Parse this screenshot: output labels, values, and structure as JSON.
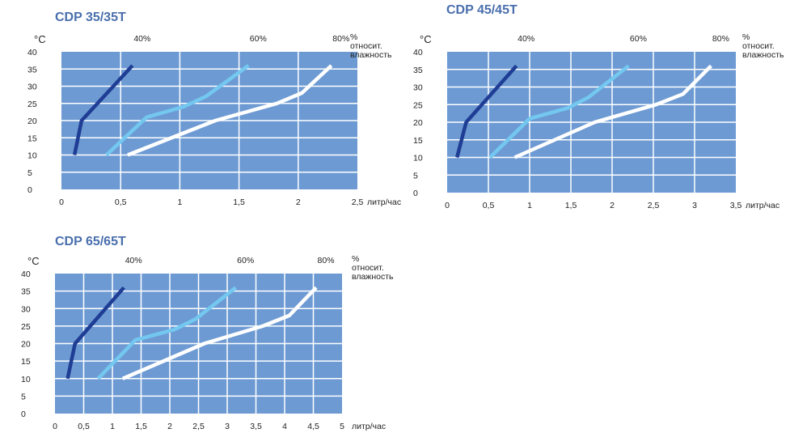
{
  "colors": {
    "plot_bg": "#6d9ad3",
    "grid": "#ffffff",
    "title": "#4a6fad",
    "series_40": "#1f3d94",
    "series_60": "#74c8f0",
    "series_80": "#ffffff"
  },
  "chart_data": [
    {
      "type": "line",
      "title": "CDP 35/35T",
      "ylabel": "°C",
      "xlabel": "литр/час",
      "legend_top_right": [
        "%",
        "относит.",
        "влажность"
      ],
      "xlim": [
        0,
        2.5
      ],
      "ylim": [
        0,
        40
      ],
      "x_ticks": [
        0,
        0.5,
        1,
        1.5,
        2,
        2.5
      ],
      "x_tick_labels": [
        "0",
        "0,5",
        "1",
        "1,5",
        "2",
        "2,5"
      ],
      "y_ticks": [
        0,
        5,
        10,
        15,
        20,
        25,
        30,
        35,
        40
      ],
      "y_tick_labels": [
        "0",
        "5",
        "10",
        "15",
        "20",
        "25",
        "30",
        "35",
        "40"
      ],
      "series": [
        {
          "name": "40%",
          "color_key": "series_40",
          "x": [
            0.11,
            0.17,
            0.6
          ],
          "y": [
            10,
            20,
            36
          ]
        },
        {
          "name": "60%",
          "color_key": "series_60",
          "x": [
            0.38,
            0.72,
            1.03,
            1.22,
            1.58
          ],
          "y": [
            10,
            21,
            24,
            27,
            36
          ]
        },
        {
          "name": "80%",
          "color_key": "series_80",
          "x": [
            0.56,
            1.3,
            1.82,
            2.03,
            2.28
          ],
          "y": [
            10,
            20,
            25,
            28,
            36
          ]
        }
      ]
    },
    {
      "type": "line",
      "title": "CDP 45/45T",
      "ylabel": "°C",
      "xlabel": "литр/час",
      "legend_top_right": [
        "%",
        "относит.",
        "влажность"
      ],
      "xlim": [
        0,
        3.5
      ],
      "ylim": [
        0,
        40
      ],
      "x_ticks": [
        0,
        0.5,
        1,
        1.5,
        2,
        2.5,
        3,
        3.5
      ],
      "x_tick_labels": [
        "0",
        "0,5",
        "1",
        "1,5",
        "2",
        "2,5",
        "3",
        "3,5"
      ],
      "y_ticks": [
        0,
        5,
        10,
        15,
        20,
        25,
        30,
        35,
        40
      ],
      "y_tick_labels": [
        "0",
        "5",
        "10",
        "15",
        "20",
        "25",
        "30",
        "35",
        "40"
      ],
      "series": [
        {
          "name": "40%",
          "color_key": "series_40",
          "x": [
            0.12,
            0.23,
            0.84
          ],
          "y": [
            10,
            20,
            36
          ]
        },
        {
          "name": "60%",
          "color_key": "series_60",
          "x": [
            0.52,
            1.0,
            1.46,
            1.71,
            2.2
          ],
          "y": [
            10,
            21,
            24,
            27,
            36
          ]
        },
        {
          "name": "80%",
          "color_key": "series_80",
          "x": [
            0.82,
            1.79,
            2.53,
            2.86,
            3.2
          ],
          "y": [
            10,
            20,
            25,
            28,
            36
          ]
        }
      ]
    },
    {
      "type": "line",
      "title": "CDP 65/65T",
      "ylabel": "°C",
      "xlabel": "литр/час",
      "legend_top_right": [
        "%",
        "относит.",
        "влажность"
      ],
      "xlim": [
        0,
        5
      ],
      "ylim": [
        0,
        40
      ],
      "x_ticks": [
        0,
        0.5,
        1,
        1.5,
        2,
        2.5,
        3,
        3.5,
        4,
        4.5,
        5
      ],
      "x_tick_labels": [
        "0",
        "0,5",
        "1",
        "1,5",
        "2",
        "2,5",
        "3",
        "3,5",
        "4",
        "4,5",
        "5"
      ],
      "y_ticks": [
        0,
        5,
        10,
        15,
        20,
        25,
        30,
        35,
        40
      ],
      "y_tick_labels": [
        "0",
        "5",
        "10",
        "15",
        "20",
        "25",
        "30",
        "35",
        "40"
      ],
      "series": [
        {
          "name": "40%",
          "color_key": "series_40",
          "x": [
            0.22,
            0.35,
            1.2
          ],
          "y": [
            10,
            20,
            36
          ]
        },
        {
          "name": "60%",
          "color_key": "series_60",
          "x": [
            0.75,
            1.4,
            2.08,
            2.45,
            3.15
          ],
          "y": [
            10,
            21,
            24,
            27,
            36
          ]
        },
        {
          "name": "80%",
          "color_key": "series_80",
          "x": [
            1.18,
            2.6,
            3.62,
            4.08,
            4.55
          ],
          "y": [
            10,
            20,
            25,
            28,
            36
          ]
        }
      ]
    }
  ]
}
